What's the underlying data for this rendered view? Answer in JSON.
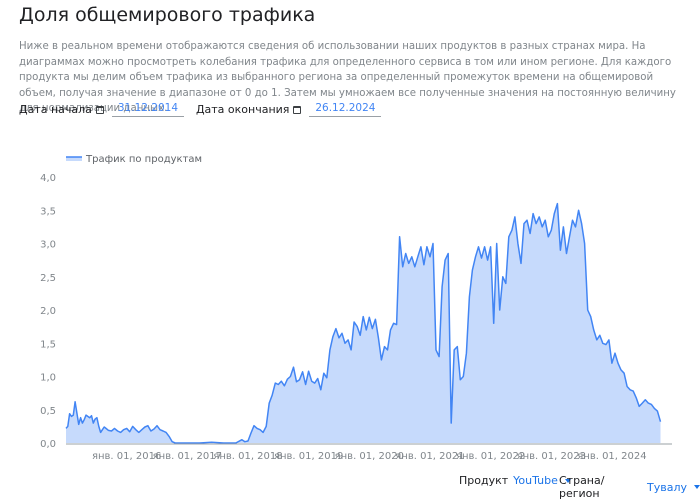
{
  "page": {
    "title": "Доля общемирового трафика",
    "description": "Ниже в реальном времени отображаются сведения об использовании наших продуктов в разных странах мира. На диаграммах можно просмотреть колебания трафика для определенного сервиса в том или ином регионе. Для каждого продукта мы делим объем трафика из выбранного региона за определенный промежуток времени на общемировой объем, получая значение в диапазоне от 0 до 1. Затем мы умножаем все полученные значения на постоянную величину для нормализации данных."
  },
  "filters": {
    "start_label": "Дата начала",
    "start_value": "31.12.2014",
    "end_label": "Дата окончания",
    "end_value": "26.12.2024",
    "calendar_icon": "calendar-icon"
  },
  "controls": {
    "product_label": "Продукт",
    "product_value": "YouTube",
    "region_label": "Страна/регион",
    "region_value": "Тувалу",
    "dropdown_icon": "caret-down-icon"
  },
  "colors": {
    "line": "#4285f4",
    "fill": "#c6dafc",
    "accent": "#1a73e8",
    "axis": "#9aa0a6"
  },
  "chart_data": {
    "type": "area",
    "title": "",
    "legend": [
      "Трафик по продуктам"
    ],
    "legend_position": "top-left",
    "xlabel": "",
    "ylabel": "",
    "ylim": [
      0,
      4.0
    ],
    "y_ticks": [
      "0,0",
      "0,5",
      "1,0",
      "1,5",
      "2,0",
      "2,5",
      "3,0",
      "3,5",
      "4,0"
    ],
    "x_ticks": [
      "янв. 01, 2016",
      "янв. 01, 2017",
      "янв. 01, 2018",
      "янв. 01, 2019",
      "янв. 01, 2020",
      "янв. 01, 2021",
      "янв. 01, 2022",
      "янв. 01, 2023",
      "янв. 01, 2024"
    ],
    "x_range": [
      "2014-12-31",
      "2024-12-26"
    ],
    "grid": false,
    "series": [
      {
        "name": "Трафик по продуктам",
        "x_year": [
          2015.0,
          2015.03,
          2015.06,
          2015.09,
          2015.12,
          2015.15,
          2015.18,
          2015.21,
          2015.24,
          2015.27,
          2015.3,
          2015.33,
          2015.36,
          2015.39,
          2015.42,
          2015.45,
          2015.48,
          2015.51,
          2015.54,
          2015.57,
          2015.6,
          2015.63,
          2015.66,
          2015.7,
          2015.75,
          2015.8,
          2015.85,
          2015.9,
          2015.95,
          2016.0,
          2016.05,
          2016.1,
          2016.15,
          2016.2,
          2016.25,
          2016.3,
          2016.35,
          2016.4,
          2016.45,
          2016.5,
          2016.55,
          2016.6,
          2016.65,
          2016.7,
          2016.75,
          2016.8,
          2016.85,
          2016.9,
          2016.95,
          2017.0,
          2017.2,
          2017.4,
          2017.6,
          2017.8,
          2017.9,
          2017.95,
          2018.0,
          2018.05,
          2018.1,
          2018.15,
          2018.2,
          2018.25,
          2018.3,
          2018.35,
          2018.4,
          2018.45,
          2018.5,
          2018.55,
          2018.6,
          2018.65,
          2018.7,
          2018.75,
          2018.8,
          2018.85,
          2018.9,
          2018.95,
          2019.0,
          2019.05,
          2019.1,
          2019.15,
          2019.2,
          2019.25,
          2019.3,
          2019.35,
          2019.4,
          2019.45,
          2019.5,
          2019.55,
          2019.6,
          2019.65,
          2019.7,
          2019.75,
          2019.8,
          2019.85,
          2019.9,
          2019.95,
          2020.0,
          2020.05,
          2020.1,
          2020.15,
          2020.2,
          2020.25,
          2020.3,
          2020.35,
          2020.4,
          2020.45,
          2020.5,
          2020.55,
          2020.6,
          2020.65,
          2020.7,
          2020.75,
          2020.8,
          2020.85,
          2020.9,
          2020.95,
          2021.0,
          2021.05,
          2021.1,
          2021.15,
          2021.2,
          2021.25,
          2021.3,
          2021.35,
          2021.4,
          2021.45,
          2021.5,
          2021.55,
          2021.6,
          2021.65,
          2021.7,
          2021.75,
          2021.8,
          2021.85,
          2021.9,
          2021.95,
          2022.0,
          2022.05,
          2022.1,
          2022.15,
          2022.2,
          2022.25,
          2022.3,
          2022.35,
          2022.4,
          2022.45,
          2022.5,
          2022.55,
          2022.6,
          2022.65,
          2022.7,
          2022.75,
          2022.8,
          2022.85,
          2022.9,
          2022.95,
          2023.0,
          2023.05,
          2023.1,
          2023.15,
          2023.2,
          2023.25,
          2023.3,
          2023.35,
          2023.4,
          2023.45,
          2023.5,
          2023.55,
          2023.6,
          2023.65,
          2023.7,
          2023.75,
          2023.8,
          2023.85,
          2023.9,
          2023.95,
          2024.0,
          2024.05,
          2024.1,
          2024.15,
          2024.2,
          2024.25,
          2024.3,
          2024.35,
          2024.4,
          2024.45,
          2024.5,
          2024.55,
          2024.6,
          2024.65,
          2024.7,
          2024.75,
          2024.8,
          2024.85,
          2024.9,
          2024.95,
          2024.99
        ],
        "values": [
          0.22,
          0.25,
          0.44,
          0.4,
          0.42,
          0.62,
          0.45,
          0.28,
          0.38,
          0.3,
          0.35,
          0.42,
          0.4,
          0.38,
          0.41,
          0.3,
          0.36,
          0.38,
          0.25,
          0.16,
          0.2,
          0.24,
          0.22,
          0.19,
          0.18,
          0.22,
          0.18,
          0.16,
          0.2,
          0.22,
          0.17,
          0.25,
          0.2,
          0.16,
          0.2,
          0.24,
          0.26,
          0.18,
          0.21,
          0.26,
          0.2,
          0.18,
          0.16,
          0.1,
          0.02,
          0.0,
          0.0,
          0.0,
          0.0,
          0.0,
          0.0,
          0.01,
          0.0,
          0.0,
          0.05,
          0.02,
          0.03,
          0.15,
          0.26,
          0.22,
          0.2,
          0.16,
          0.25,
          0.6,
          0.72,
          0.9,
          0.88,
          0.93,
          0.86,
          0.96,
          1.0,
          1.14,
          0.92,
          0.95,
          1.07,
          0.88,
          1.08,
          0.93,
          0.9,
          0.97,
          0.8,
          1.05,
          0.98,
          1.4,
          1.6,
          1.72,
          1.58,
          1.65,
          1.5,
          1.55,
          1.4,
          1.82,
          1.75,
          1.62,
          1.9,
          1.7,
          1.89,
          1.72,
          1.86,
          1.58,
          1.25,
          1.45,
          1.4,
          1.7,
          1.8,
          1.78,
          3.1,
          2.65,
          2.85,
          2.7,
          2.8,
          2.65,
          2.8,
          2.95,
          2.68,
          2.95,
          2.8,
          3.0,
          1.4,
          1.3,
          2.35,
          2.75,
          2.85,
          0.3,
          1.4,
          1.45,
          0.95,
          1.0,
          1.35,
          2.2,
          2.6,
          2.8,
          2.95,
          2.78,
          2.95,
          2.75,
          2.95,
          1.8,
          3.0,
          2.0,
          2.5,
          2.4,
          3.1,
          3.2,
          3.4,
          3.0,
          2.7,
          3.3,
          3.35,
          3.15,
          3.45,
          3.3,
          3.4,
          3.25,
          3.35,
          3.1,
          3.2,
          3.45,
          3.6,
          2.9,
          3.25,
          2.85,
          3.1,
          3.35,
          3.25,
          3.5,
          3.3,
          3.0,
          2.0,
          1.9,
          1.7,
          1.55,
          1.62,
          1.5,
          1.48,
          1.55,
          1.2,
          1.35,
          1.2,
          1.1,
          1.05,
          0.85,
          0.8,
          0.78,
          0.68,
          0.55,
          0.6,
          0.65,
          0.6,
          0.58,
          0.52,
          0.48,
          0.32
        ]
      }
    ]
  }
}
